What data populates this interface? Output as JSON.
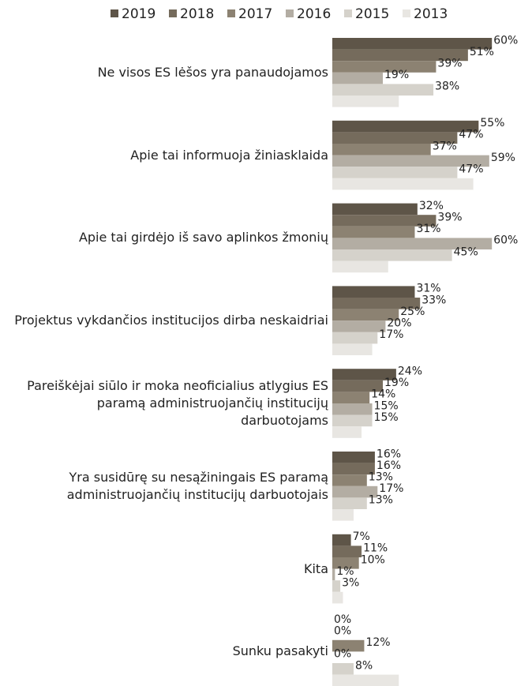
{
  "chart_data": {
    "type": "hbar",
    "categories": [
      "Ne visos ES lėšos yra panaudojamos",
      "Apie tai informuoja žiniasklaida",
      "Apie tai girdėjo iš savo aplinkos žmonių",
      "Projektus vykdančios institucijos dirba neskaidriai",
      "Pareiškėjai siūlo ir moka neoficialius atlygius ES paramą administruojančių institucijų darbuotojams",
      "Yra susidūrę su nesąžiningais ES paramą administruojančių institucijų darbuotojais",
      "Kita",
      "Sunku pasakyti"
    ],
    "series": [
      {
        "name": "2019",
        "color": "#5e5548",
        "values": [
          60,
          55,
          32,
          31,
          24,
          16,
          7,
          0
        ],
        "value_labels": [
          "60%",
          "55%",
          "32%",
          "31%",
          "24%",
          "16%",
          "7%",
          "0%"
        ]
      },
      {
        "name": "2018",
        "color": "#756b5c",
        "values": [
          51,
          47,
          39,
          33,
          19,
          16,
          11,
          0
        ],
        "value_labels": [
          "51%",
          "47%",
          "39%",
          "33%",
          "19%",
          "16%",
          "11%",
          "0%"
        ]
      },
      {
        "name": "2017",
        "color": "#8c8272",
        "values": [
          39,
          37,
          31,
          25,
          14,
          13,
          10,
          12
        ],
        "value_labels": [
          "39%",
          "37%",
          "31%",
          "25%",
          "14%",
          "13%",
          "10%",
          "12%"
        ]
      },
      {
        "name": "2016",
        "color": "#b3ada3",
        "values": [
          19,
          59,
          60,
          20,
          15,
          17,
          1,
          0
        ],
        "value_labels": [
          "19%",
          "59%",
          "60%",
          "20%",
          "15%",
          "17%",
          "1%",
          "0%"
        ]
      },
      {
        "name": "2015",
        "color": "#d5d2cb",
        "values": [
          38,
          47,
          45,
          17,
          15,
          13,
          3,
          8
        ],
        "value_labels": [
          "38%",
          "47%",
          "45%",
          "17%",
          "15%",
          "13%",
          "3%",
          "8%"
        ]
      },
      {
        "name": "2013",
        "color": "#e8e6e2",
        "values": [
          25,
          53,
          21,
          15,
          11,
          8,
          4,
          25
        ]
      }
    ],
    "legend": "top"
  }
}
